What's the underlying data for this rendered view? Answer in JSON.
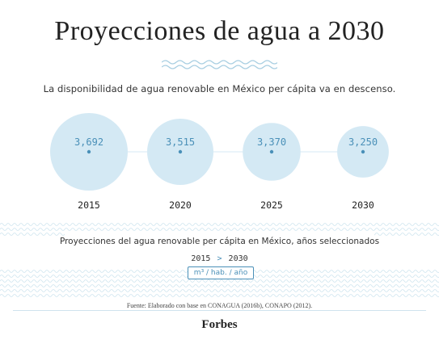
{
  "header": {
    "title": "Proyecciones de agua a 2030",
    "subtitle": "La disponibilidad de agua renovable en México per cápita va en descenso."
  },
  "chart_data": {
    "type": "bubble",
    "title": "Proyecciones de agua a 2030",
    "categories": [
      "2015",
      "2020",
      "2025",
      "2030"
    ],
    "values": [
      3692,
      3515,
      3370,
      3250
    ],
    "value_labels": [
      "3,692",
      "3,515",
      "3,370",
      "3,250"
    ],
    "unit": "m³ / hab. / año"
  },
  "footer": {
    "caption": "Proyecciones del agua renovable per cápita en México, años seleccionados",
    "range_start": "2015",
    "range_sep": ">",
    "range_end": "2030",
    "unit_label": "m³ / hab. / año",
    "source": "Fuente: Elaborado con base en CONAGUA (2016b), CONAPO (2012).",
    "brand": "Forbes"
  },
  "colors": {
    "bubble_fill": "#d4e9f4",
    "dot": "#4a90b8",
    "value_text": "#4a90b8",
    "wave": "#a9cfe2"
  }
}
